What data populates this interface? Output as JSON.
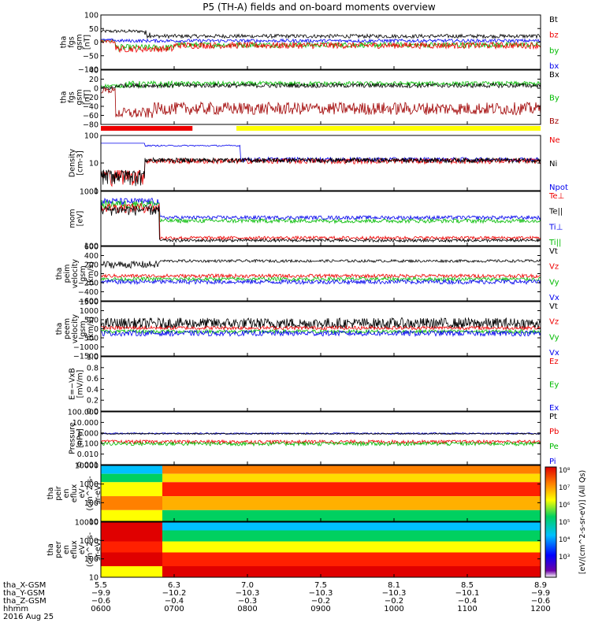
{
  "title": "P5 (TH-A) fields and on-board moments overview",
  "chart_data": [
    {
      "type": "line",
      "ylabel": [
        "tha",
        "fgs",
        "gsm",
        "[nT]"
      ],
      "yticks": [
        "100",
        "50",
        "0",
        "−50",
        "−100"
      ],
      "ylim": [
        -100,
        100
      ],
      "legend": [
        "Bt",
        "bz",
        "by",
        "bx"
      ],
      "colors": [
        "#000000",
        "#ee0000",
        "#00bb00",
        "#0000ee"
      ]
    },
    {
      "type": "line",
      "ylabel": [
        "tha",
        "fgs",
        "gsm",
        "[nT]"
      ],
      "yticks": [
        "40",
        "20",
        "0",
        "−20",
        "−40",
        "−60",
        "−80"
      ],
      "ylim": [
        -80,
        40
      ],
      "legend": [
        "Bx",
        "By",
        "Bz"
      ],
      "colors": [
        "#000000",
        "#00bb00",
        "#a00000"
      ]
    },
    {
      "type": "line",
      "ylabel": [
        "Density",
        "[cm-3]"
      ],
      "yticks": [
        "100",
        "10",
        "1"
      ],
      "yscale": "log",
      "legend": [
        "Ne",
        "Ni",
        "Npot"
      ],
      "colors": [
        "#ee0000",
        "#000000",
        "#0000ee"
      ]
    },
    {
      "type": "line",
      "ylabel": [
        "mom",
        "[eV]"
      ],
      "yticks": [
        "1000",
        "100"
      ],
      "yscale": "log",
      "legend": [
        "Te⊥",
        "Te||",
        "Ti⊥",
        "Ti||"
      ],
      "colors": [
        "#ee0000",
        "#000000",
        "#0000ee",
        "#00bb00"
      ]
    },
    {
      "type": "line",
      "ylabel": [
        "tha",
        "peim",
        "velocity",
        "gsm",
        "[km/s]"
      ],
      "yticks": [
        "600",
        "400",
        "200",
        "0",
        "−200",
        "−400",
        "−600"
      ],
      "ylim": [
        -600,
        600
      ],
      "legend": [
        "Vt",
        "Vz",
        "Vy",
        "Vx"
      ],
      "colors": [
        "#000000",
        "#ee0000",
        "#00bb00",
        "#0000ee"
      ]
    },
    {
      "type": "line",
      "ylabel": [
        "tha",
        "peem",
        "velocity",
        "gsm",
        "[km/s]"
      ],
      "yticks": [
        "1500",
        "1000",
        "500",
        "0",
        "−500",
        "−1000",
        "−1500"
      ],
      "ylim": [
        -1500,
        1500
      ],
      "legend": [
        "Vt",
        "Vz",
        "Vy",
        "Vx"
      ],
      "colors": [
        "#000000",
        "#ee0000",
        "#00bb00",
        "#0000ee"
      ]
    },
    {
      "type": "line",
      "ylabel": [
        "E=−VxB",
        "[mV/m]"
      ],
      "yticks": [
        "1.0",
        "0.8",
        "0.6",
        "0.4",
        "0.2",
        "0.0"
      ],
      "ylim": [
        0,
        1
      ],
      "legend": [
        "Ez",
        "Ey",
        "Ex"
      ],
      "colors": [
        "#ee0000",
        "#00bb00",
        "#0000ee"
      ]
    },
    {
      "type": "line",
      "ylabel": [
        "Pressure",
        "[nPa]"
      ],
      "yticks": [
        "100.000",
        "10.000",
        "1.000",
        "0.100",
        "0.010",
        "0.001"
      ],
      "yscale": "log",
      "legend": [
        "Pt",
        "Pb",
        "Pe",
        "Pi"
      ],
      "colors": [
        "#000000",
        "#ee0000",
        "#00bb00",
        "#0000ee"
      ]
    },
    {
      "type": "heatmap",
      "ylabel": [
        "tha",
        "peir",
        "en",
        "eflux",
        "eV",
        "(cm^2-s-",
        "sr-eV)"
      ],
      "yticks": [
        "10000",
        "1000",
        "100",
        "10"
      ],
      "yscale": "log"
    },
    {
      "type": "heatmap",
      "ylabel": [
        "tha",
        "peer",
        "en",
        "eflux",
        "eV",
        "(cm^2-s-",
        "sr-eV)"
      ],
      "yticks": [
        "10000",
        "1000",
        "100",
        "10"
      ],
      "yscale": "log"
    }
  ],
  "colorbar": {
    "ticks": [
      "10⁸",
      "10⁷",
      "10⁶",
      "10⁵",
      "10⁴",
      "10³"
    ],
    "label": "[eV/(cm^2-s-sr-eV)] (All Qs)"
  },
  "xaxis": {
    "row_labels": [
      "tha_X-GSM",
      "tha_Y-GSM",
      "tha_Z-GSM",
      "hhmm",
      "2016 Aug 25"
    ],
    "ticks": [
      {
        "x": "5.5",
        "y": "−9.9",
        "z": "−0.6",
        "t": "0600"
      },
      {
        "x": "6.3",
        "y": "−10.2",
        "z": "−0.4",
        "t": "0700"
      },
      {
        "x": "7.0",
        "y": "−10.3",
        "z": "−0.3",
        "t": "0800"
      },
      {
        "x": "7.5",
        "y": "−10.3",
        "z": "−0.2",
        "t": "0900"
      },
      {
        "x": "8.1",
        "y": "−10.3",
        "z": "−0.2",
        "t": "1000"
      },
      {
        "x": "8.5",
        "y": "−10.1",
        "z": "−0.4",
        "t": "1100"
      },
      {
        "x": "8.9",
        "y": "−9.9",
        "z": "−0.6",
        "t": "1200"
      }
    ]
  }
}
